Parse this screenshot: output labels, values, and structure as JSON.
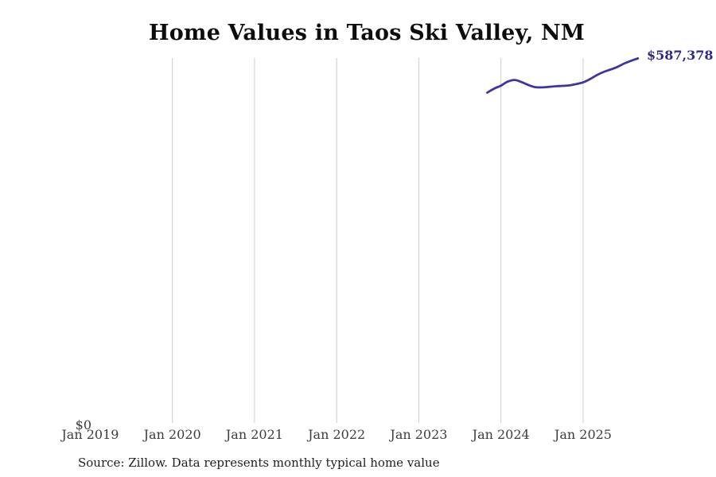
{
  "page": {
    "background": "#ffffff"
  },
  "chart_data": {
    "type": "line",
    "title": "Home Values in Taos Ski Valley, NM",
    "source_note": "Source: Zillow. Data represents monthly typical home value",
    "end_label": "$587,378",
    "x": [
      "Nov 2023",
      "Dec 2023",
      "Jan 2024",
      "Feb 2024",
      "Mar 2024",
      "Apr 2024",
      "May 2024",
      "Jun 2024",
      "Jul 2024",
      "Aug 2024",
      "Sep 2024",
      "Oct 2024",
      "Nov 2024",
      "Dec 2024",
      "Jan 2025",
      "Feb 2025",
      "Mar 2025",
      "Apr 2025",
      "May 2025",
      "Jun 2025",
      "Jul 2025",
      "Aug 2025",
      "Sep 2025"
    ],
    "values": [
      532200,
      538600,
      543500,
      550000,
      552600,
      549200,
      544500,
      541000,
      540600,
      541500,
      542500,
      543100,
      543800,
      546100,
      548700,
      554000,
      560400,
      565600,
      569400,
      573600,
      579100,
      583600,
      587378
    ],
    "xticks": [
      {
        "label": "Jan 2019",
        "gridline": false
      },
      {
        "label": "Jan 2020",
        "gridline": true
      },
      {
        "label": "Jan 2021",
        "gridline": true
      },
      {
        "label": "Jan 2022",
        "gridline": true
      },
      {
        "label": "Jan 2023",
        "gridline": true
      },
      {
        "label": "Jan 2024",
        "gridline": true
      },
      {
        "label": "Jan 2025",
        "gridline": true
      }
    ],
    "yticks": [
      {
        "label": "$0",
        "value": 0
      }
    ],
    "ylim": [
      0,
      588000
    ],
    "grid": "vertical-only",
    "legend_position": "none",
    "line_color": "#3e35a0",
    "end_label_color": "#2d2b87",
    "gridline_color": "#cccccc"
  }
}
